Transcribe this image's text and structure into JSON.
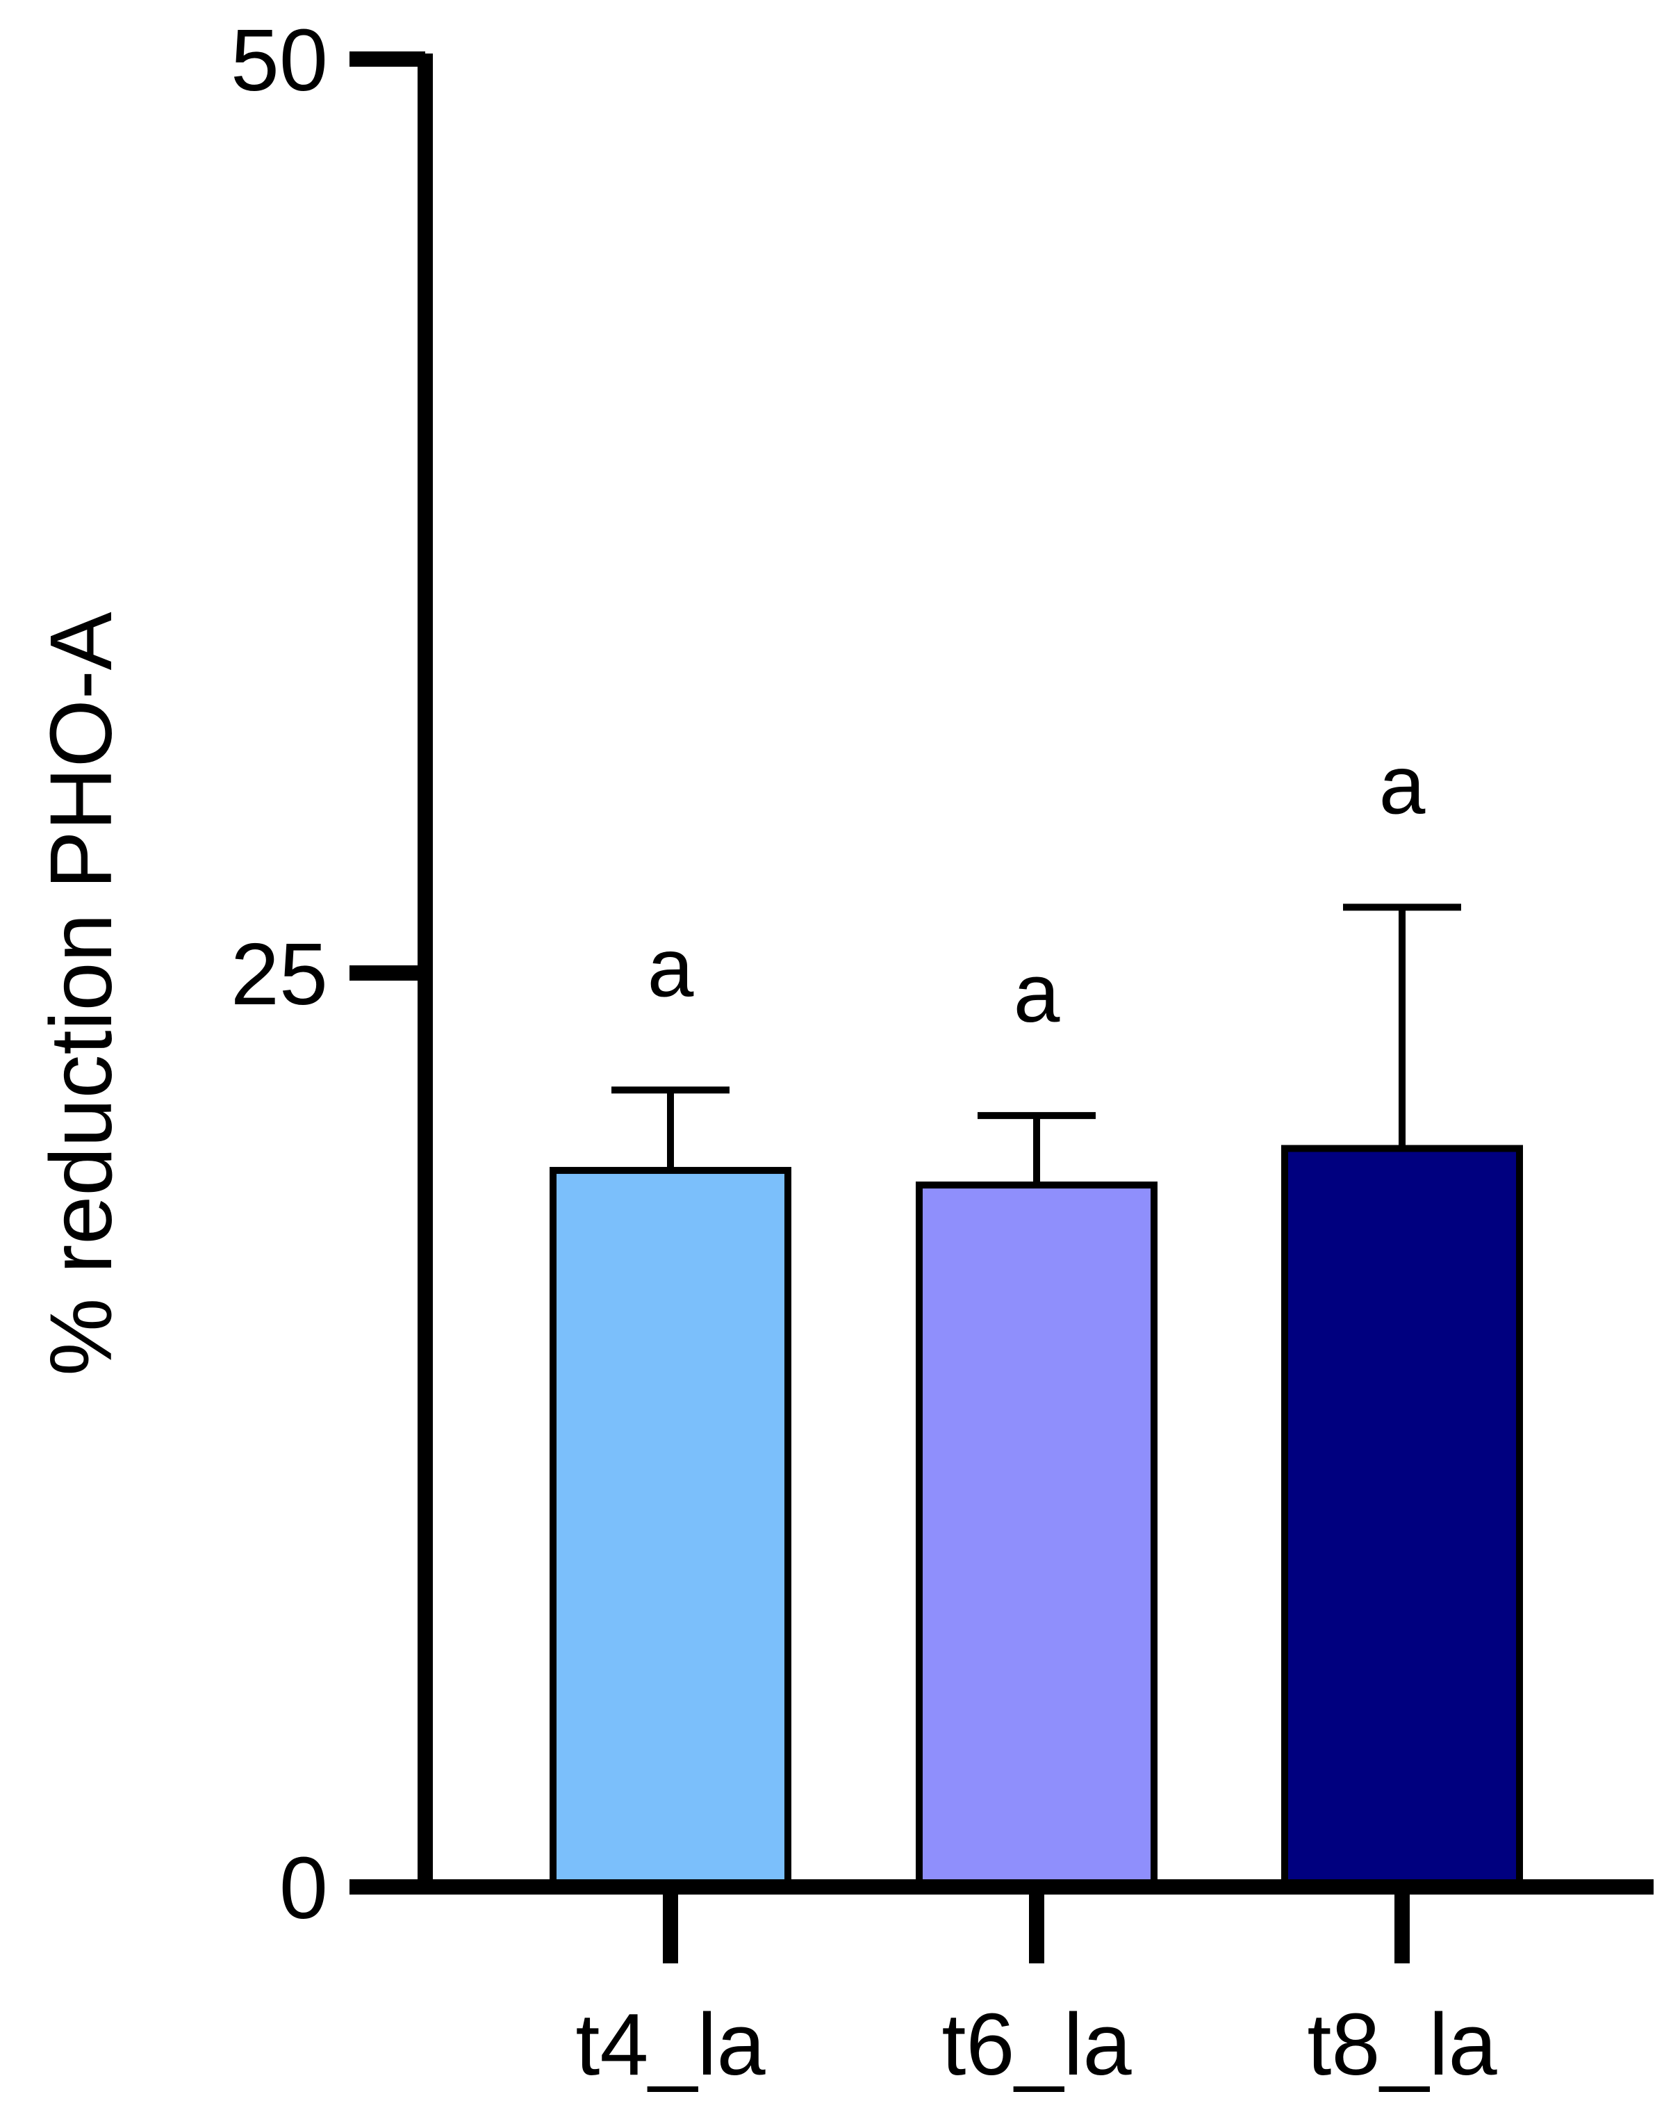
{
  "chart_data": {
    "type": "bar",
    "title": "",
    "xlabel": "",
    "ylabel": "% reduction PHO-A",
    "ylim": [
      0,
      50
    ],
    "yticks": [
      {
        "value": 0,
        "label": "0"
      },
      {
        "value": 25,
        "label": "25"
      },
      {
        "value": 50,
        "label": "50"
      }
    ],
    "categories": [
      "t4_la",
      "t6_la",
      "t8_la"
    ],
    "values": [
      19.6,
      19.2,
      20.2
    ],
    "errors": [
      2.2,
      1.9,
      6.6
    ],
    "significance_labels": [
      "a",
      "a",
      "a"
    ],
    "bar_colors": [
      "#7BBFFB",
      "#8F8FFC",
      "#00007F"
    ],
    "axis_color": "#000000",
    "grid": false,
    "legend": "none"
  }
}
